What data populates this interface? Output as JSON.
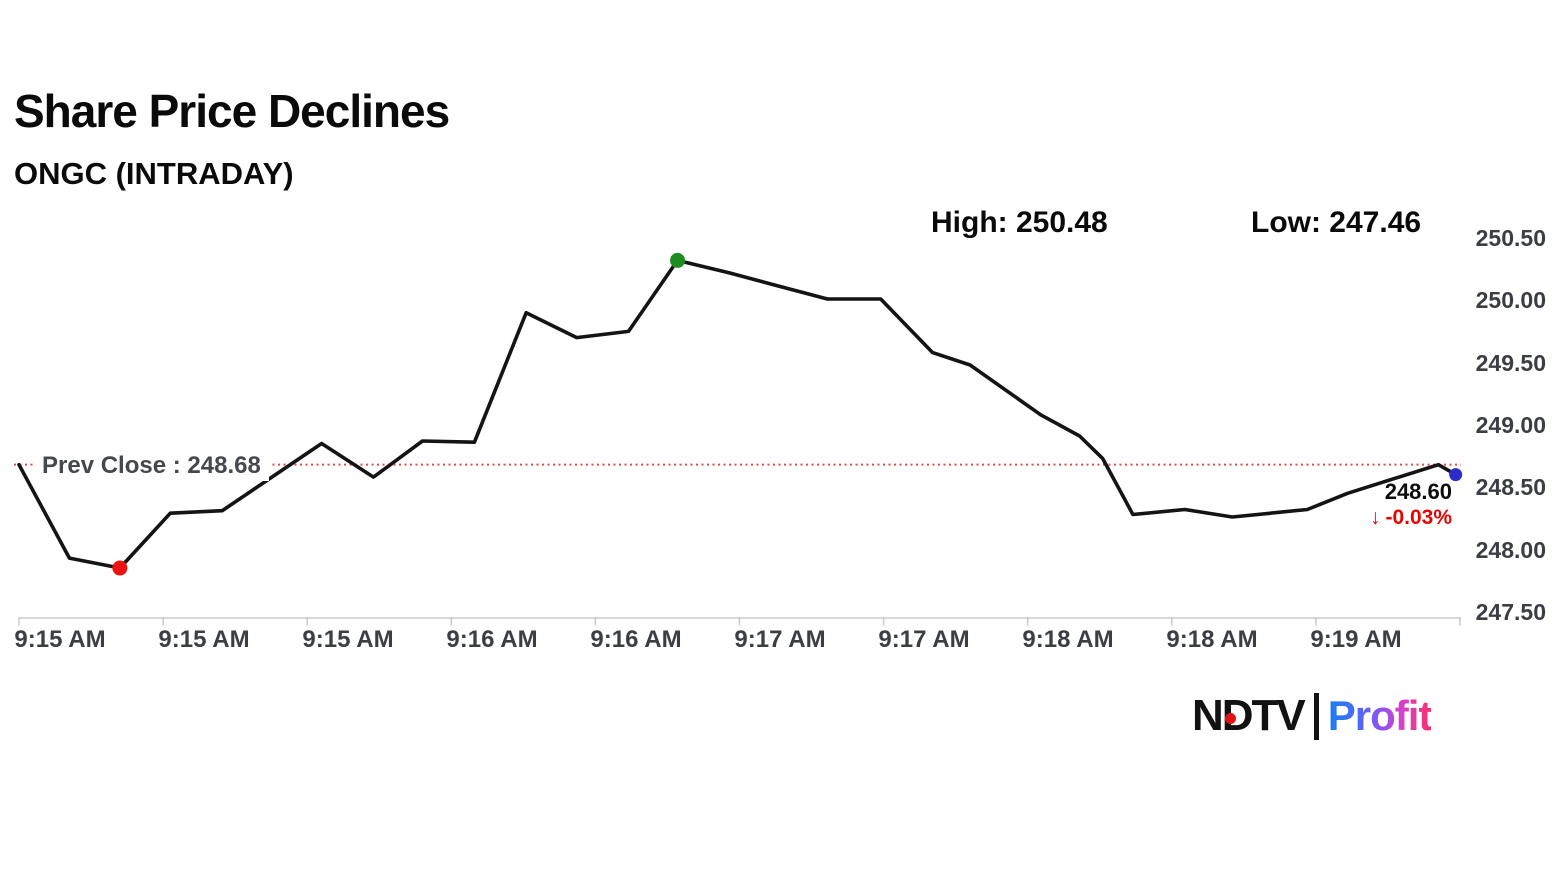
{
  "header": {
    "title": "Share Price Declines",
    "subtitle": "ONGC (INTRADAY)"
  },
  "stats": {
    "high_text": "High: 250.48",
    "low_text": "Low: 247.46"
  },
  "chart_data": {
    "type": "line",
    "symbol": "ONGC (INTRADAY)",
    "ylim": [
      247.5,
      250.5
    ],
    "high": 250.48,
    "low": 247.46,
    "prev_close": 248.68,
    "prev_close_label": "Prev Close : 248.68",
    "last_price": 248.6,
    "last_price_label": "248.60",
    "change_arrow": "↓",
    "change_label": "-0.03%",
    "line_color": "#141414",
    "axis_color": "#cbcbcb",
    "prev_close_line_color": "#e14b4b",
    "y_tick_labels": [
      "250.50",
      "250.00",
      "249.50",
      "249.00",
      "248.50",
      "248.00",
      "247.50"
    ],
    "x_tick_labels": [
      "9:15 AM",
      "9:15 AM",
      "9:15 AM",
      "9:16 AM",
      "9:16 AM",
      "9:17 AM",
      "9:17 AM",
      "9:18 AM",
      "9:18 AM",
      "9:19 AM"
    ],
    "series": [
      {
        "name": "ONGC intraday price",
        "points": [
          [
            0.0,
            248.68
          ],
          [
            0.035,
            247.93
          ],
          [
            0.07,
            247.85
          ],
          [
            0.105,
            248.29
          ],
          [
            0.141,
            248.31
          ],
          [
            0.21,
            248.85
          ],
          [
            0.246,
            248.58
          ],
          [
            0.28,
            248.87
          ],
          [
            0.316,
            248.86
          ],
          [
            0.352,
            249.9
          ],
          [
            0.387,
            249.7
          ],
          [
            0.423,
            249.75
          ],
          [
            0.457,
            250.32
          ],
          [
            0.493,
            250.22
          ],
          [
            0.522,
            250.13
          ],
          [
            0.561,
            250.01
          ],
          [
            0.598,
            250.01
          ],
          [
            0.634,
            249.58
          ],
          [
            0.66,
            249.48
          ],
          [
            0.709,
            249.08
          ],
          [
            0.736,
            248.91
          ],
          [
            0.752,
            248.73
          ],
          [
            0.773,
            248.28
          ],
          [
            0.809,
            248.32
          ],
          [
            0.842,
            248.26
          ],
          [
            0.894,
            248.32
          ],
          [
            0.922,
            248.45
          ],
          [
            0.985,
            248.68
          ],
          [
            0.997,
            248.6
          ]
        ]
      }
    ],
    "markers": [
      {
        "role": "low",
        "t": 0.07,
        "v": 247.85,
        "color": "#ee1111",
        "r": 7.5
      },
      {
        "role": "high",
        "t": 0.457,
        "v": 250.32,
        "color": "#1f8c1f",
        "r": 7.5
      },
      {
        "role": "last",
        "t": 0.997,
        "v": 248.6,
        "color": "#2d2dcc",
        "r": 6.5
      }
    ],
    "legend": "none",
    "grid": "off"
  },
  "footer": {
    "ndtv": "NDTV",
    "profit": "Profit"
  }
}
